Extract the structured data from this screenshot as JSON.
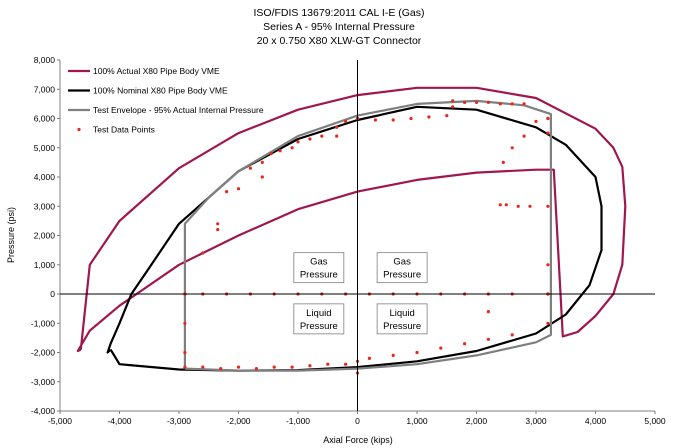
{
  "chart_data": {
    "type": "line",
    "title_lines": [
      "ISO/FDIS 13679:2011 CAL I-E (Gas)",
      "Series A - 95% Internal Pressure",
      "20 x 0.750 X80 XLW-GT Connector"
    ],
    "xlabel": "Axial Force (kips)",
    "ylabel": "Pressure (psi)",
    "xlim": [
      -5000,
      5000
    ],
    "ylim": [
      -4000,
      8000
    ],
    "x_ticks": [
      -5000,
      -4000,
      -3000,
      -2000,
      -1000,
      0,
      1000,
      2000,
      3000,
      4000,
      5000
    ],
    "x_tick_labels": [
      "-5,000",
      "-4,000",
      "-3,000",
      "-2,000",
      "-1,000",
      "0",
      "1,000",
      "2,000",
      "3,000",
      "4,000",
      "5,000"
    ],
    "y_ticks": [
      -4000,
      -3000,
      -2000,
      -1000,
      0,
      1000,
      2000,
      3000,
      4000,
      5000,
      6000,
      7000,
      8000
    ],
    "y_tick_labels": [
      "-4,000",
      "-3,000",
      "-2,000",
      "-1,000",
      "0",
      "1,000",
      "2,000",
      "3,000",
      "4,000",
      "5,000",
      "6,000",
      "7,000",
      "8,000"
    ],
    "grid": false,
    "legend_position": "top-left",
    "series": [
      {
        "name": "100% Actual X80 Pipe Body VME",
        "color": "#a0174e",
        "style": "line",
        "x": [
          -4650,
          -4700,
          -4500,
          -4000,
          -3000,
          -2000,
          -1000,
          0,
          1000,
          2000,
          3000,
          3300,
          3450,
          3700,
          4000,
          4300,
          4450,
          4500,
          4450,
          4300,
          4000,
          3000,
          2000,
          1000,
          0,
          -1000,
          -2000,
          -3000,
          -4000,
          -4500,
          -4650
        ],
        "y": [
          -1900,
          -1950,
          -1250,
          -400,
          1000,
          2000,
          2900,
          3500,
          3900,
          4150,
          4250,
          4250,
          -1450,
          -1300,
          -750,
          0,
          1000,
          3000,
          4350,
          5000,
          5650,
          6700,
          7050,
          7050,
          6800,
          6300,
          5500,
          4300,
          2500,
          1000,
          -1900
        ]
      },
      {
        "name": "100% Nominal X80 Pipe Body VME",
        "color": "#000000",
        "style": "line",
        "x": [
          -4150,
          -4000,
          -3000,
          -2000,
          -1000,
          0,
          1000,
          2000,
          3000,
          3500,
          3900,
          4100,
          4100,
          4000,
          3500,
          3000,
          2000,
          1000,
          0,
          -1000,
          -2000,
          -3000,
          -3500,
          -3800,
          -4000,
          -4150,
          -4200,
          -4150
        ],
        "y": [
          -1900,
          -2400,
          -2580,
          -2620,
          -2600,
          -2500,
          -2300,
          -1950,
          -1350,
          -700,
          300,
          1500,
          3000,
          4000,
          5100,
          5700,
          6300,
          6400,
          5950,
          5300,
          4200,
          2400,
          900,
          0,
          -1000,
          -1700,
          -2000,
          -1900
        ]
      },
      {
        "name": "Test Envelope - 95% Actual Internal Pressure",
        "color": "#7f7f7f",
        "style": "line",
        "x": [
          -2900,
          -2900,
          -2500,
          -2000,
          -1000,
          0,
          1000,
          2000,
          2800,
          3250,
          3250,
          3000,
          2000,
          1000,
          0,
          -1000,
          -2000,
          -2900
        ],
        "y": [
          -2550,
          2400,
          3300,
          4200,
          5400,
          6100,
          6500,
          6600,
          6450,
          6150,
          -1400,
          -1650,
          -2100,
          -2400,
          -2550,
          -2620,
          -2620,
          -2550
        ]
      },
      {
        "name": "Test Data Points",
        "color": "#e4281d",
        "style": "markers",
        "x": [
          -2900,
          -2600,
          -2350,
          -2350,
          -2200,
          -2000,
          -1800,
          -1600,
          -1600,
          -1450,
          -1300,
          -1100,
          -1000,
          -800,
          -600,
          -350,
          -350,
          -200,
          0,
          0,
          300,
          600,
          900,
          1200,
          1500,
          1600,
          1600,
          1800,
          2000,
          2200,
          2400,
          2600,
          2800,
          3200,
          3200,
          3200,
          3200,
          3200,
          2900,
          2700,
          2500,
          2400,
          2450,
          2600,
          2800,
          3000,
          3200,
          3200,
          2600,
          2200,
          1800,
          1400,
          1000,
          600,
          200,
          0,
          -200,
          -500,
          -800,
          -1100,
          -1400,
          -1700,
          -2000,
          -2300,
          -2600,
          -2900,
          -2900,
          -2900,
          -2900,
          -2600,
          -2200,
          -1800,
          -1400,
          -1000,
          -600,
          -200,
          200,
          600,
          1000,
          1400,
          1800,
          2200,
          2600,
          3200,
          0,
          2200
        ],
        "y": [
          0,
          1400,
          2400,
          2200,
          3500,
          3600,
          4300,
          4500,
          4000,
          4800,
          4900,
          5000,
          5200,
          5300,
          5400,
          5400,
          5700,
          5900,
          6000,
          6000,
          5950,
          5950,
          6000,
          6050,
          6100,
          6400,
          6600,
          6550,
          6550,
          6550,
          6500,
          6500,
          6500,
          6000,
          5500,
          3000,
          1000,
          0,
          3000,
          3000,
          3050,
          3050,
          4500,
          5000,
          5400,
          5900,
          6000,
          -1000,
          -1400,
          -1550,
          -1700,
          -1850,
          -2000,
          -2100,
          -2200,
          -2300,
          -2400,
          -2400,
          -2450,
          -2500,
          -2500,
          -2550,
          -2500,
          -2550,
          -2500,
          -2500,
          -2000,
          -1000,
          0,
          0,
          0,
          0,
          0,
          0,
          0,
          0,
          0,
          0,
          0,
          0,
          0,
          0,
          0,
          0,
          -2700,
          -600
        ]
      }
    ],
    "annotations": [
      {
        "lines": [
          "Gas",
          "Pressure"
        ],
        "x": -650,
        "y": 900
      },
      {
        "lines": [
          "Gas",
          "Pressure"
        ],
        "x": 750,
        "y": 900
      },
      {
        "lines": [
          "Liquid",
          "Pressure"
        ],
        "x": -650,
        "y": -850
      },
      {
        "lines": [
          "Liquid",
          "Pressure"
        ],
        "x": 750,
        "y": -850
      }
    ]
  }
}
